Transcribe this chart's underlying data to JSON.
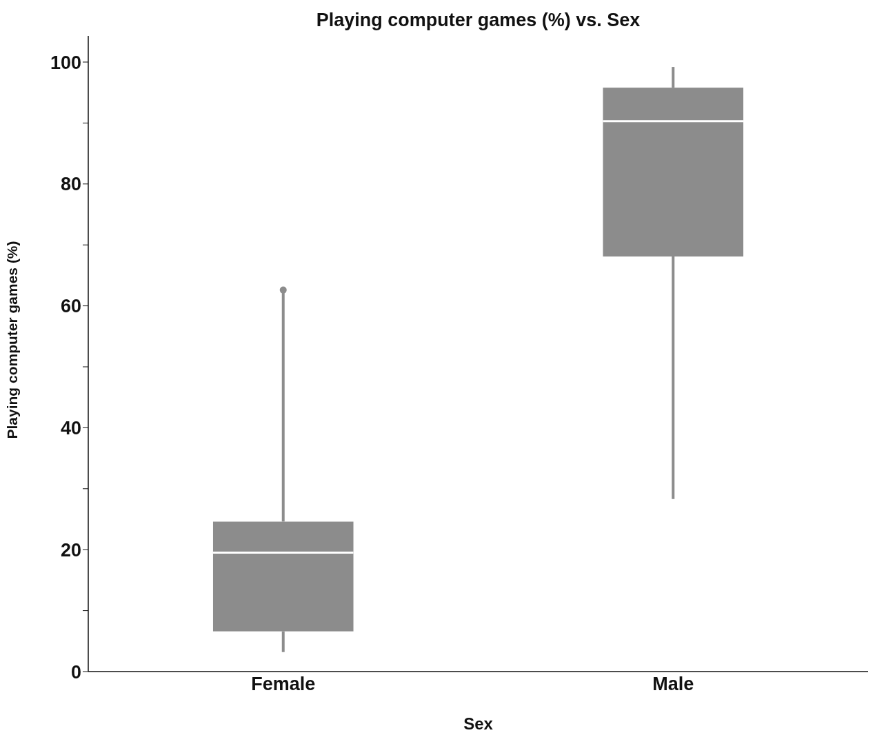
{
  "chart_data": {
    "type": "box",
    "title": "Playing computer games (%) vs. Sex",
    "xlabel": "Sex",
    "ylabel": "Playing computer games (%)",
    "categories": [
      "Female",
      "Male"
    ],
    "color": "#8c8c8c",
    "boxes": [
      {
        "low": 3.2,
        "q1": 6.6,
        "median": 19.5,
        "q3": 24.6,
        "high": 62.6,
        "outliers": [
          62.6
        ]
      },
      {
        "low": 28.3,
        "q1": 68.1,
        "median": 90.3,
        "q3": 95.8,
        "high": 99.2
      }
    ],
    "ylim": [
      0,
      104.3
    ],
    "yticks": [
      0,
      {
        "value": 10,
        "label": null
      },
      20,
      {
        "value": 30,
        "label": null
      },
      40,
      {
        "value": 50,
        "label": null
      },
      60,
      {
        "value": 70,
        "label": null
      },
      80,
      {
        "value": 90,
        "label": null
      },
      100
    ],
    "grid": false,
    "legend": false
  }
}
